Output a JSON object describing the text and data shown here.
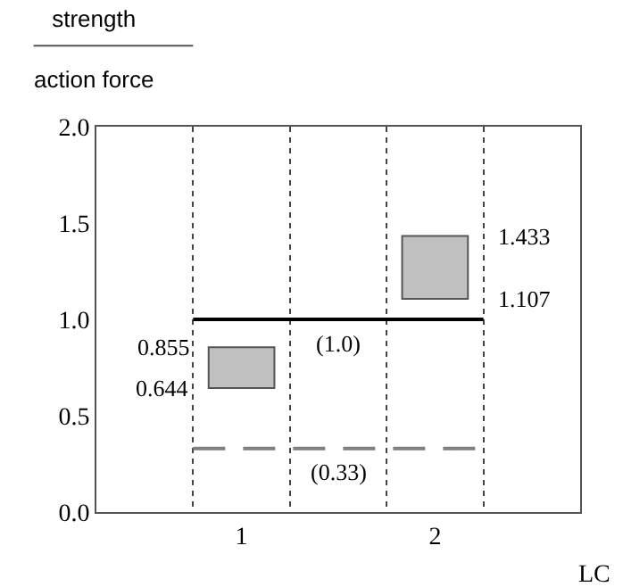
{
  "chart_data": {
    "type": "bar",
    "ylabel": "strength\naction force",
    "xlabel": "LC",
    "categories": [
      null,
      "1",
      null,
      "2",
      null
    ],
    "values": [
      null,
      0.211,
      null,
      0.326,
      null
    ],
    "base": [
      null,
      0.644,
      null,
      1.107,
      null
    ],
    "color": "#c0c0c0",
    "ylim": [
      0,
      2
    ],
    "yticks": [
      {
        "value": 0,
        "label": "0.0"
      },
      {
        "value": 0.5,
        "label": "0.5"
      },
      {
        "value": 1,
        "label": "1.0"
      },
      {
        "value": 1.5,
        "label": "1.5"
      },
      {
        "value": 2,
        "label": "2.0"
      }
    ],
    "grid": "x",
    "ref_lines": [
      {
        "axis": "y",
        "value": 1.0,
        "label": "(1.0)",
        "color": "#000000",
        "line_style": "solid"
      },
      {
        "axis": "y",
        "value": 0.33,
        "label": "(0.33)",
        "color": "#808080",
        "line_style": "dashed"
      }
    ],
    "annotations": [
      {
        "text": "0.855",
        "x": "1",
        "y": 0.855
      },
      {
        "text": "0.644",
        "x": "1",
        "y": 0.644
      },
      {
        "text": "1.433",
        "x": "2",
        "y": 1.433
      },
      {
        "text": "1.107",
        "x": "2",
        "y": 1.107
      }
    ]
  }
}
